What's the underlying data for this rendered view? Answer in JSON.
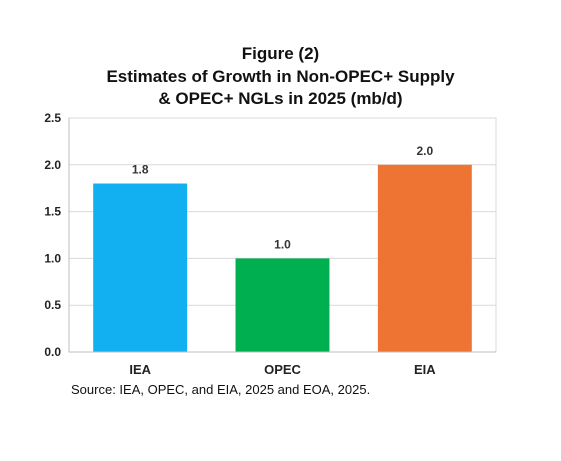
{
  "title_lines": [
    "Figure (2)",
    "Estimates of Growth in Non-OPEC+ Supply",
    "& OPEC+ NGLs in 2025 (mb/d)"
  ],
  "source": "Source: IEA, OPEC, and EIA, 2025 and EOA, 2025.",
  "chart_data": {
    "type": "bar",
    "title": "Figure (2) Estimates of Growth in Non-OPEC+ Supply & OPEC+ NGLs in 2025 (mb/d)",
    "categories": [
      "IEA",
      "OPEC",
      "EIA"
    ],
    "values": [
      1.8,
      1.0,
      2.0
    ],
    "data_labels": [
      "1.8",
      "1.0",
      "2.0"
    ],
    "colors": [
      "#12b0f0",
      "#00b050",
      "#ed7433"
    ],
    "ylim": [
      0,
      2.5
    ],
    "yticks": [
      0.0,
      0.5,
      1.0,
      1.5,
      2.0,
      2.5
    ],
    "ytick_labels": [
      "0.0",
      "0.5",
      "1.0",
      "1.5",
      "2.0",
      "2.5"
    ],
    "grid": true,
    "xlabel": "",
    "ylabel": ""
  }
}
